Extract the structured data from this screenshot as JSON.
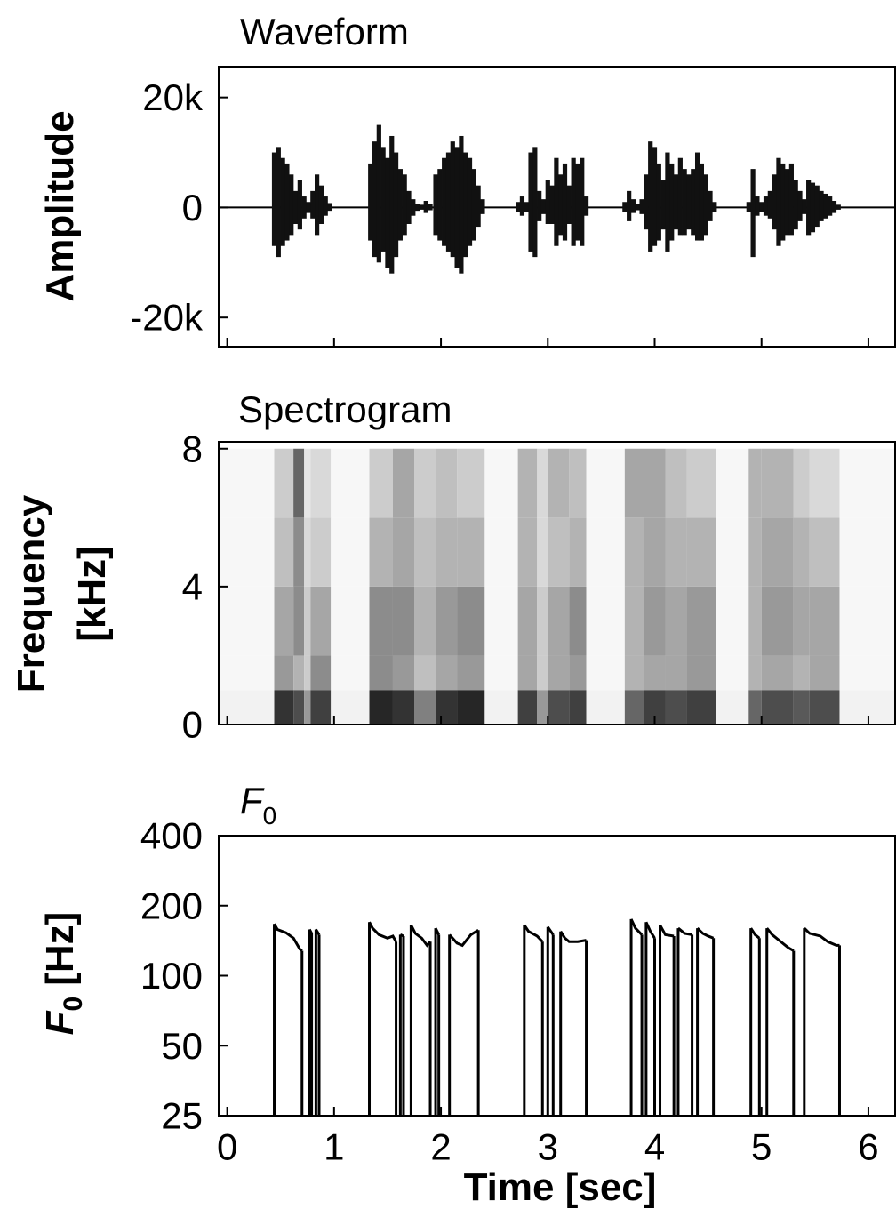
{
  "chart_data": [
    {
      "type": "waveform",
      "title": "Waveform",
      "ylabel": "Amplitude",
      "color": "#111111",
      "x": [
        0.44,
        0.48,
        0.52,
        0.56,
        0.6,
        0.64,
        0.68,
        0.72,
        0.76,
        0.8,
        0.84,
        0.88,
        0.92,
        0.96,
        1.34,
        1.38,
        1.42,
        1.46,
        1.5,
        1.54,
        1.58,
        1.62,
        1.66,
        1.7,
        1.74,
        1.78,
        1.82,
        1.86,
        1.9,
        1.95,
        1.99,
        2.03,
        2.07,
        2.11,
        2.15,
        2.19,
        2.23,
        2.27,
        2.31,
        2.35,
        2.39,
        2.72,
        2.76,
        2.8,
        2.84,
        2.88,
        2.92,
        2.96,
        3.0,
        3.04,
        3.08,
        3.12,
        3.16,
        3.2,
        3.24,
        3.28,
        3.32,
        3.36,
        3.72,
        3.76,
        3.8,
        3.84,
        3.88,
        3.92,
        3.96,
        4.0,
        4.04,
        4.08,
        4.12,
        4.16,
        4.2,
        4.24,
        4.28,
        4.32,
        4.36,
        4.4,
        4.44,
        4.48,
        4.52,
        4.56,
        4.88,
        4.92,
        4.96,
        5.0,
        5.04,
        5.08,
        5.12,
        5.16,
        5.2,
        5.24,
        5.28,
        5.32,
        5.36,
        5.4,
        5.44,
        5.48,
        5.52,
        5.56,
        5.6,
        5.64,
        5.68,
        5.72
      ],
      "values": [
        10000,
        11000,
        9000,
        8000,
        6000,
        3000,
        5000,
        2000,
        1000,
        3000,
        6000,
        4000,
        2000,
        800,
        8000,
        12000,
        15000,
        11000,
        9000,
        13000,
        10000,
        7000,
        6000,
        3000,
        1500,
        700,
        500,
        1200,
        600,
        6000,
        7000,
        9000,
        10000,
        12000,
        11000,
        13000,
        10000,
        9000,
        7000,
        4000,
        1500,
        1000,
        2000,
        1000,
        10000,
        11000,
        3000,
        1500,
        5000,
        4000,
        9000,
        6000,
        8000,
        4000,
        9000,
        8000,
        9000,
        2000,
        1000,
        3000,
        1500,
        700,
        1500,
        6000,
        12000,
        11000,
        8000,
        5000,
        10000,
        8000,
        6000,
        9000,
        7000,
        6000,
        7000,
        10000,
        8000,
        6000,
        3000,
        1000,
        1000,
        7000,
        2000,
        1000,
        2000,
        3000,
        6000,
        9000,
        8000,
        7000,
        8000,
        5000,
        3000,
        1500,
        5000,
        4500,
        4000,
        3000,
        2500,
        2000,
        1200,
        500
      ],
      "lower": [
        -7000,
        -9000,
        -7000,
        -6000,
        -5000,
        -3000,
        -4000,
        -2000,
        -1000,
        -2000,
        -5000,
        -3000,
        -1500,
        -600,
        -6000,
        -9000,
        -10000,
        -8000,
        -11000,
        -12000,
        -9000,
        -6000,
        -5000,
        -3000,
        -1500,
        -600,
        -400,
        -1000,
        -500,
        -5000,
        -6000,
        -7000,
        -8000,
        -9000,
        -11000,
        -12000,
        -9000,
        -7000,
        -6000,
        -3500,
        -1200,
        -800,
        -1500,
        -800,
        -8000,
        -9000,
        -2500,
        -1200,
        -3000,
        -3000,
        -7000,
        -5000,
        -6000,
        -3000,
        -7000,
        -6000,
        -7000,
        -1500,
        -800,
        -2500,
        -1000,
        -500,
        -1200,
        -4000,
        -8000,
        -7000,
        -6000,
        -4000,
        -8000,
        -6000,
        -4000,
        -5000,
        -5000,
        -4000,
        -5000,
        -6000,
        -6000,
        -5000,
        -2500,
        -800,
        -800,
        -9000,
        -1500,
        -800,
        -1500,
        -2000,
        -4000,
        -7000,
        -6000,
        -5000,
        -5000,
        -4000,
        -2500,
        -1200,
        -5000,
        -4500,
        -3500,
        -2500,
        -2000,
        -1500,
        -1000,
        -400
      ],
      "xlim": [
        -0.08,
        6.25
      ],
      "ylim": [
        -25300,
        25600
      ],
      "yticks": [
        {
          "value": 20000,
          "label": "20k"
        },
        0,
        {
          "value": -20000,
          "label": "-20k"
        }
      ]
    },
    {
      "type": "heatmap",
      "title": "Spectrogram",
      "ylabel": [
        "Frequency",
        "[kHz]"
      ],
      "x_edges": [
        -0.08,
        0.44,
        0.62,
        0.72,
        0.78,
        0.97,
        1.33,
        1.55,
        1.75,
        1.95,
        2.15,
        2.41,
        2.72,
        2.9,
        3.0,
        3.2,
        3.36,
        3.72,
        3.9,
        4.1,
        4.3,
        4.57,
        4.88,
        5.0,
        5.3,
        5.45,
        5.73,
        6.25
      ],
      "y_edges": [
        0,
        1,
        2,
        4,
        6,
        8
      ],
      "z": [
        [
          0.05,
          0.03,
          0.03,
          0.03,
          0.03
        ],
        [
          0.8,
          0.4,
          0.35,
          0.25,
          0.2
        ],
        [
          0.7,
          0.3,
          0.45,
          0.45,
          0.6
        ],
        [
          0.4,
          0.2,
          0.2,
          0.15,
          0.1
        ],
        [
          0.75,
          0.45,
          0.35,
          0.2,
          0.15
        ],
        [
          0.05,
          0.03,
          0.03,
          0.03,
          0.03
        ],
        [
          0.85,
          0.45,
          0.45,
          0.3,
          0.2
        ],
        [
          0.8,
          0.4,
          0.45,
          0.35,
          0.35
        ],
        [
          0.5,
          0.25,
          0.3,
          0.25,
          0.2
        ],
        [
          0.8,
          0.35,
          0.4,
          0.3,
          0.25
        ],
        [
          0.85,
          0.4,
          0.45,
          0.3,
          0.2
        ],
        [
          0.05,
          0.03,
          0.03,
          0.03,
          0.03
        ],
        [
          0.75,
          0.35,
          0.35,
          0.3,
          0.3
        ],
        [
          0.4,
          0.2,
          0.2,
          0.15,
          0.15
        ],
        [
          0.7,
          0.35,
          0.35,
          0.25,
          0.3
        ],
        [
          0.75,
          0.4,
          0.45,
          0.3,
          0.25
        ],
        [
          0.05,
          0.03,
          0.03,
          0.03,
          0.03
        ],
        [
          0.6,
          0.3,
          0.3,
          0.3,
          0.35
        ],
        [
          0.75,
          0.35,
          0.4,
          0.35,
          0.35
        ],
        [
          0.7,
          0.35,
          0.35,
          0.3,
          0.25
        ],
        [
          0.75,
          0.4,
          0.4,
          0.3,
          0.2
        ],
        [
          0.05,
          0.03,
          0.03,
          0.03,
          0.03
        ],
        [
          0.6,
          0.3,
          0.3,
          0.3,
          0.3
        ],
        [
          0.7,
          0.35,
          0.4,
          0.35,
          0.3
        ],
        [
          0.65,
          0.3,
          0.35,
          0.3,
          0.2
        ],
        [
          0.7,
          0.35,
          0.35,
          0.25,
          0.15
        ],
        [
          0.05,
          0.03,
          0.03,
          0.03,
          0.03
        ]
      ],
      "xlim": [
        -0.08,
        6.25
      ],
      "ylim": [
        0,
        8.2
      ],
      "yticks": [
        0,
        4,
        8
      ]
    },
    {
      "type": "line",
      "title": [
        "F",
        "0"
      ],
      "ylabel": [
        "F",
        "0",
        "[Hz]"
      ],
      "xlabel": "Time [sec]",
      "color": "#000000",
      "x": [
        0.44,
        0.47,
        0.55,
        0.62,
        0.68,
        0.7,
        null,
        0.77,
        0.79,
        null,
        0.83,
        0.86,
        null,
        1.33,
        1.36,
        1.42,
        1.5,
        1.55,
        1.58,
        null,
        1.62,
        1.65,
        null,
        1.72,
        1.76,
        1.82,
        1.87,
        1.9,
        null,
        1.95,
        1.98,
        null,
        2.08,
        2.15,
        2.2,
        2.28,
        2.35,
        null,
        2.78,
        2.82,
        2.9,
        2.95,
        null,
        3.0,
        3.05,
        null,
        3.12,
        3.16,
        3.2,
        3.28,
        3.36,
        null,
        3.78,
        3.82,
        3.88,
        null,
        3.92,
        3.96,
        4.0,
        null,
        4.05,
        4.1,
        4.18,
        null,
        4.22,
        4.28,
        4.35,
        null,
        4.4,
        4.45,
        4.5,
        4.55,
        null,
        4.9,
        4.94,
        4.98,
        null,
        5.05,
        5.1,
        5.18,
        5.25,
        5.3,
        null,
        5.4,
        5.45,
        5.55,
        5.62,
        5.7,
        5.73
      ],
      "values": [
        167,
        158,
        153,
        145,
        130,
        128,
        null,
        158,
        152,
        null,
        158,
        150,
        null,
        170,
        160,
        150,
        145,
        148,
        140,
        null,
        150,
        148,
        null,
        165,
        152,
        145,
        135,
        140,
        null,
        160,
        150,
        null,
        150,
        138,
        135,
        150,
        157,
        null,
        165,
        155,
        148,
        140,
        null,
        162,
        150,
        null,
        155,
        145,
        140,
        140,
        142,
        null,
        175,
        160,
        150,
        null,
        170,
        155,
        145,
        null,
        165,
        150,
        148,
        null,
        160,
        152,
        150,
        null,
        160,
        152,
        148,
        145,
        null,
        160,
        150,
        145,
        null,
        160,
        150,
        140,
        132,
        128,
        null,
        160,
        152,
        148,
        140,
        135,
        135
      ],
      "xlim": [
        -0.08,
        6.25
      ],
      "xticks": [
        0,
        1,
        2,
        3,
        4,
        5,
        6
      ],
      "ylim": [
        25,
        400
      ],
      "yticks": [
        25,
        50,
        100,
        200,
        400
      ],
      "log_y": true,
      "drop_to_axis": true
    }
  ]
}
